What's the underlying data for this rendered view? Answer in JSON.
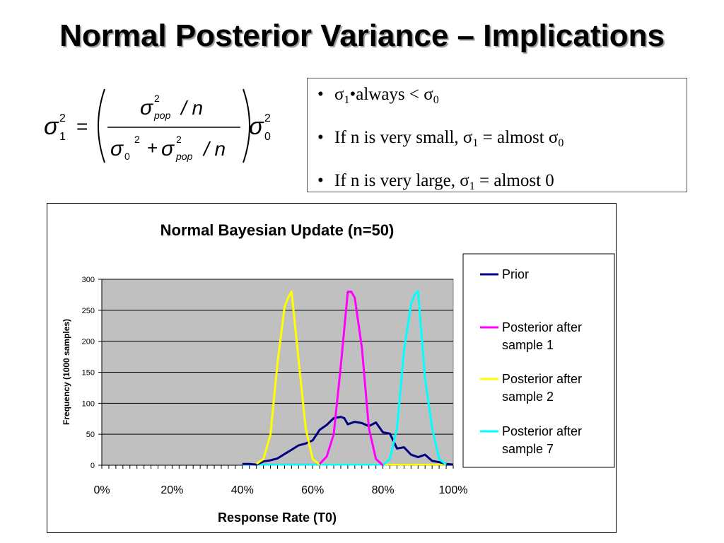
{
  "slide": {
    "title": "Normal Posterior Variance – Implications"
  },
  "formula": {
    "lhs_sigma": "σ",
    "lhs_sub": "1",
    "lhs_sup": "2",
    "equals": "=",
    "num_sigma": "σ",
    "num_sup": "2",
    "num_sub": "pop",
    "num_rest": "/ n",
    "den_sigma0": "σ",
    "den_sub0": "0",
    "den_sup0": "2",
    "den_plus": "+",
    "den_sigma_pop": "σ",
    "den_sup_pop": "2",
    "den_sub_pop": "pop",
    "den_rest": "/ n",
    "rhs_sigma": "σ",
    "rhs_sup": "2",
    "rhs_sub": "0"
  },
  "bullets": [
    {
      "bullet": "•",
      "parts": [
        "σ",
        "1",
        "•always ",
        "< σ",
        "0"
      ]
    },
    {
      "bullet": "•",
      "parts": [
        "If n is very small, σ",
        "1",
        "  = almost σ",
        "0"
      ]
    },
    {
      "bullet": "•",
      "parts": [
        "If n is very large,  σ",
        "1",
        " = almost 0"
      ]
    }
  ],
  "chart_data": {
    "type": "line",
    "title": "Normal Bayesian Update (n=50)",
    "xlabel": "Response Rate (T0)",
    "ylabel": "Frequency (1000 samples)",
    "xlim": [
      0,
      100
    ],
    "ylim": [
      0,
      300
    ],
    "x_ticks": [
      "0%",
      "20%",
      "40%",
      "60%",
      "80%",
      "100%"
    ],
    "y_ticks": [
      "0",
      "50",
      "100",
      "150",
      "200",
      "250",
      "300"
    ],
    "grid": true,
    "plot_background": "#c0c0c0",
    "legend_position": "right",
    "series": [
      {
        "name": "Prior",
        "color": "#000080",
        "x": [
          40,
          42,
          44,
          46,
          48,
          50,
          52,
          54,
          56,
          58,
          60,
          62,
          64,
          66,
          68,
          69,
          70,
          72,
          74,
          76,
          78,
          80,
          82,
          84,
          86,
          88,
          90,
          92,
          94,
          96,
          98,
          100
        ],
        "y": [
          2,
          2,
          1,
          6,
          8,
          11,
          18,
          25,
          32,
          35,
          40,
          57,
          65,
          76,
          78,
          76,
          66,
          70,
          68,
          63,
          69,
          53,
          51,
          27,
          29,
          17,
          13,
          17,
          7,
          5,
          2,
          1
        ]
      },
      {
        "name": "Posterior after sample 1",
        "color": "#ff00ff",
        "x": [
          62,
          64,
          66,
          68,
          70,
          71,
          72,
          74,
          76,
          78,
          80
        ],
        "y": [
          2,
          14,
          50,
          160,
          280,
          280,
          270,
          190,
          60,
          10,
          0
        ]
      },
      {
        "name": "Posterior after sample 2",
        "color": "#ffff00",
        "x": [
          44,
          46,
          48,
          50,
          52,
          53,
          54,
          56,
          58,
          60,
          62
        ],
        "y": [
          2,
          10,
          50,
          165,
          255,
          270,
          280,
          170,
          60,
          10,
          1
        ]
      },
      {
        "name": "Posterior after sample 7",
        "color": "#00ffff",
        "x": [
          80,
          82,
          84,
          86,
          88,
          89,
          90,
          92,
          94,
          96,
          98
        ],
        "y": [
          0,
          10,
          60,
          185,
          260,
          275,
          281,
          140,
          60,
          10,
          1
        ]
      }
    ],
    "flat_segments": [
      {
        "series": "Posterior after sample 1",
        "x": [
          40,
          62
        ],
        "y": 1
      },
      {
        "series": "Posterior after sample 2",
        "x": [
          62,
          98
        ],
        "y": 1
      },
      {
        "series": "Posterior after sample 7",
        "x": [
          40,
          80
        ],
        "y": 1
      }
    ],
    "legend": [
      {
        "label": "Prior",
        "color": "#000080"
      },
      {
        "label": "Posterior after sample 1",
        "color": "#ff00ff"
      },
      {
        "label": "Posterior after sample 2",
        "color": "#ffff00"
      },
      {
        "label": "Posterior after sample 7",
        "color": "#00ffff"
      }
    ]
  }
}
